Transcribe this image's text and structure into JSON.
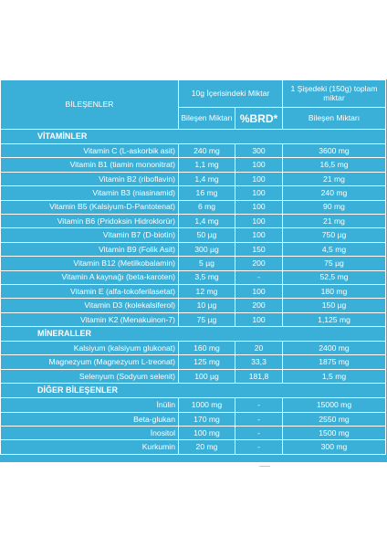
{
  "header": {
    "ingredients": "BİLEŞENLER",
    "per10g": "10g İçerisindeki Miktar",
    "perBottle": "1 Şişedeki (150g) toplam miktar",
    "compAmount": "Bileşen Miktarı",
    "brd": "%BRD*",
    "compAmountTotal": "Bileşen Miktarı"
  },
  "sections": {
    "vitamins": "VİTAMİNLER",
    "minerals": "MİNERALLER",
    "other": "DİĞER BİLEŞENLER"
  },
  "vitamins": [
    {
      "name": "Vitamin C (L-askorbik asit)",
      "qty": "240 mg",
      "brd": "300",
      "total": "3600 mg"
    },
    {
      "name": "Vitamin B1 (tiamin mononitrat)",
      "qty": "1,1 mg",
      "brd": "100",
      "total": "16,5 mg"
    },
    {
      "name": "Vitamin B2 (riboflavin)",
      "qty": "1,4 mg",
      "brd": "100",
      "total": "21 mg"
    },
    {
      "name": "Vitamin B3 (niasinamid)",
      "qty": "16 mg",
      "brd": "100",
      "total": "240 mg"
    },
    {
      "name": "Vitamin B5 (Kalsiyum-D-Pantotenat)",
      "qty": "6 mg",
      "brd": "100",
      "total": "90 mg"
    },
    {
      "name": "Vitamin B6 (Pridoksin Hidroklorür)",
      "qty": "1,4 mg",
      "brd": "100",
      "total": "21 mg"
    },
    {
      "name": "Vitamin B7 (D-biotin)",
      "qty": "50 µg",
      "brd": "100",
      "total": "750 µg"
    },
    {
      "name": "Vitamin B9 (Folik Asit)",
      "qty": "300 µg",
      "brd": "150",
      "total": "4,5 mg"
    },
    {
      "name": "Vitamin B12 (Metilkobalamin)",
      "qty": "5 µg",
      "brd": "200",
      "total": "75 µg"
    },
    {
      "name": "Vitamin A kaynağı (beta-karoten)",
      "qty": "3,5 mg",
      "brd": "-",
      "total": "52,5 mg"
    },
    {
      "name": "Vitamin E (alfa-tokoferilasetat)",
      "qty": "12 mg",
      "brd": "100",
      "total": "180 mg"
    },
    {
      "name": "Vitamin D3 (kolekalsiferol)",
      "qty": "10 µg",
      "brd": "200",
      "total": "150 µg"
    },
    {
      "name": "Vitamin K2 (Menakuinon-7)",
      "qty": "75 µg",
      "brd": "100",
      "total": "1,125 mg"
    }
  ],
  "minerals": [
    {
      "name": "Kalsiyum (kalsiyum glukonat)",
      "qty": "160 mg",
      "brd": "20",
      "total": "2400 mg"
    },
    {
      "name": "Magnezyum (Magnezyum L-treonat)",
      "qty": "125 mg",
      "brd": "33,3",
      "total": "1875 mg"
    },
    {
      "name": "Selenyum (Sodyum selenit)",
      "qty": "100 µg",
      "brd": "181,8",
      "total": "1,5 mg"
    }
  ],
  "other": [
    {
      "name": "İnülin",
      "qty": "1000 mg",
      "brd": "-",
      "total": "15000 mg"
    },
    {
      "name": "Beta-glukan",
      "qty": "170 mg",
      "brd": "-",
      "total": "2550 mg"
    },
    {
      "name": "İnositol",
      "qty": "100 mg",
      "brd": "-",
      "total": "1500 mg"
    },
    {
      "name": "Kurkumin",
      "qty": "20 mg",
      "brd": "-",
      "total": "300 mg"
    }
  ],
  "colors": {
    "tableBackground": "#3ab0d8",
    "text": "#ffffff",
    "grid": "#ffffff"
  }
}
